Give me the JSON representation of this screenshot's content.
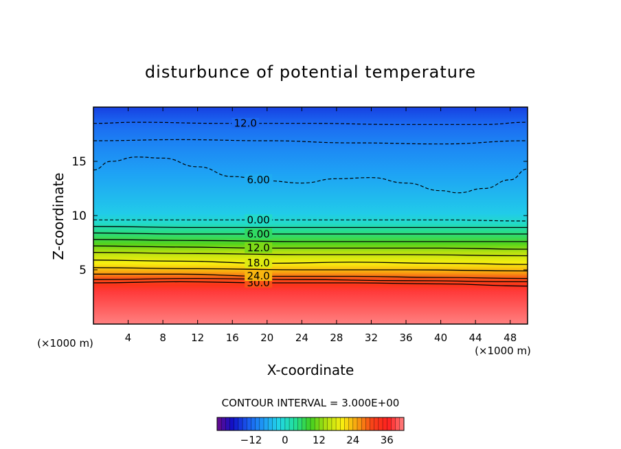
{
  "chart_data": {
    "type": "heatmap",
    "title": "disturbunce of potential temperature",
    "xlabel": "X-coordinate",
    "ylabel": "Z-coordinate",
    "x_unit_left": "(×1000 m)",
    "x_unit_right": "(×1000 m)",
    "xlim": [
      0,
      50
    ],
    "ylim": [
      0,
      20
    ],
    "x_ticks": [
      4,
      8,
      12,
      16,
      20,
      24,
      28,
      32,
      36,
      40,
      44,
      48
    ],
    "y_ticks": [
      5,
      10,
      15
    ],
    "contour_interval_text": "CONTOUR INTERVAL = 3.000E+00",
    "contour_interval": 3,
    "colorbar": {
      "min": -24,
      "max": 42,
      "ticks": [
        -12,
        0,
        12,
        24,
        36
      ]
    },
    "colormap": [
      "#6a0a8a",
      "#1010c8",
      "#1a5cf0",
      "#1e9cf6",
      "#22d6e6",
      "#22e09a",
      "#40d020",
      "#b0e010",
      "#f8f010",
      "#f8a010",
      "#f84018",
      "#ff2020",
      "#ff8080"
    ],
    "field_profile": [
      {
        "z": 0.0,
        "value": 42
      },
      {
        "z": 3.0,
        "value": 38
      },
      {
        "z": 3.6,
        "value": 33
      },
      {
        "z": 4.2,
        "value": 30
      },
      {
        "z": 4.8,
        "value": 25
      },
      {
        "z": 5.6,
        "value": 20
      },
      {
        "z": 6.6,
        "value": 15
      },
      {
        "z": 7.4,
        "value": 10
      },
      {
        "z": 8.3,
        "value": 5
      },
      {
        "z": 9.3,
        "value": 0
      },
      {
        "z": 10.2,
        "value": -3
      },
      {
        "z": 12.0,
        "value": -5
      },
      {
        "z": 14.0,
        "value": -7
      },
      {
        "z": 16.0,
        "value": -9
      },
      {
        "z": 17.0,
        "value": -10
      },
      {
        "z": 18.5,
        "value": -12
      },
      {
        "z": 20.0,
        "value": -15
      }
    ],
    "contours": [
      {
        "level": 30,
        "label": "30.0",
        "label_x": 19,
        "dashed": false,
        "points": [
          [
            0,
            3.8
          ],
          [
            10,
            3.9
          ],
          [
            20,
            3.8
          ],
          [
            30,
            3.8
          ],
          [
            40,
            3.7
          ],
          [
            50,
            3.5
          ]
        ]
      },
      {
        "level": 27,
        "label": "",
        "dashed": false,
        "points": [
          [
            0,
            4.1
          ],
          [
            12,
            4.2
          ],
          [
            24,
            4.1
          ],
          [
            36,
            4.0
          ],
          [
            50,
            3.9
          ]
        ]
      },
      {
        "level": 24,
        "label": "24.0",
        "label_x": 19,
        "dashed": false,
        "points": [
          [
            0,
            4.6
          ],
          [
            10,
            4.6
          ],
          [
            20,
            4.4
          ],
          [
            30,
            4.4
          ],
          [
            40,
            4.3
          ],
          [
            50,
            4.2
          ]
        ]
      },
      {
        "level": 21,
        "label": "",
        "dashed": false,
        "points": [
          [
            0,
            5.2
          ],
          [
            12,
            5.1
          ],
          [
            24,
            5.0
          ],
          [
            36,
            5.0
          ],
          [
            50,
            4.9
          ]
        ]
      },
      {
        "level": 18,
        "label": "18.0",
        "label_x": 19,
        "dashed": false,
        "points": [
          [
            0,
            5.9
          ],
          [
            10,
            5.8
          ],
          [
            20,
            5.6
          ],
          [
            30,
            5.7
          ],
          [
            40,
            5.6
          ],
          [
            50,
            5.5
          ]
        ]
      },
      {
        "level": 15,
        "label": "",
        "dashed": false,
        "points": [
          [
            0,
            6.6
          ],
          [
            12,
            6.5
          ],
          [
            24,
            6.4
          ],
          [
            36,
            6.4
          ],
          [
            50,
            6.3
          ]
        ]
      },
      {
        "level": 12,
        "label": "12.0",
        "label_x": 19,
        "dashed": false,
        "points": [
          [
            0,
            7.2
          ],
          [
            10,
            7.1
          ],
          [
            20,
            7.0
          ],
          [
            30,
            7.0
          ],
          [
            40,
            7.0
          ],
          [
            50,
            6.9
          ]
        ]
      },
      {
        "level": 9,
        "label": "",
        "dashed": false,
        "points": [
          [
            0,
            7.8
          ],
          [
            12,
            7.7
          ],
          [
            24,
            7.6
          ],
          [
            36,
            7.6
          ],
          [
            50,
            7.6
          ]
        ]
      },
      {
        "level": 6,
        "label": "6.00",
        "label_x": 19,
        "dashed": false,
        "points": [
          [
            0,
            8.4
          ],
          [
            10,
            8.3
          ],
          [
            20,
            8.3
          ],
          [
            30,
            8.3
          ],
          [
            40,
            8.3
          ],
          [
            50,
            8.3
          ]
        ]
      },
      {
        "level": 3,
        "label": "",
        "dashed": false,
        "points": [
          [
            0,
            9.0
          ],
          [
            12,
            8.9
          ],
          [
            24,
            8.9
          ],
          [
            36,
            8.9
          ],
          [
            50,
            8.9
          ]
        ]
      },
      {
        "level": 0,
        "label": "0.00",
        "label_x": 19,
        "dashed": true,
        "points": [
          [
            0,
            9.6
          ],
          [
            10,
            9.6
          ],
          [
            20,
            9.6
          ],
          [
            30,
            9.6
          ],
          [
            40,
            9.6
          ],
          [
            50,
            9.5
          ]
        ]
      },
      {
        "level": -6,
        "label": "6.00",
        "label_x": 19,
        "dashed": true,
        "points": [
          [
            0,
            14.2
          ],
          [
            2,
            15.0
          ],
          [
            5,
            15.4
          ],
          [
            8,
            15.3
          ],
          [
            12,
            14.5
          ],
          [
            16,
            13.6
          ],
          [
            20,
            13.2
          ],
          [
            24,
            13.0
          ],
          [
            28,
            13.4
          ],
          [
            32,
            13.5
          ],
          [
            36,
            13.0
          ],
          [
            40,
            12.3
          ],
          [
            42,
            12.1
          ],
          [
            45,
            12.5
          ],
          [
            48,
            13.3
          ],
          [
            50,
            14.3
          ]
        ]
      },
      {
        "level": -9,
        "label": "",
        "dashed": true,
        "points": [
          [
            0,
            16.9
          ],
          [
            10,
            17.0
          ],
          [
            20,
            16.9
          ],
          [
            30,
            16.7
          ],
          [
            40,
            16.6
          ],
          [
            50,
            16.9
          ]
        ]
      },
      {
        "level": -12,
        "label": "12.0",
        "label_x": 17.5,
        "dashed": true,
        "points": [
          [
            0,
            18.5
          ],
          [
            5,
            18.6
          ],
          [
            15,
            18.5
          ],
          [
            25,
            18.5
          ],
          [
            35,
            18.4
          ],
          [
            45,
            18.4
          ],
          [
            50,
            18.6
          ]
        ]
      }
    ]
  }
}
